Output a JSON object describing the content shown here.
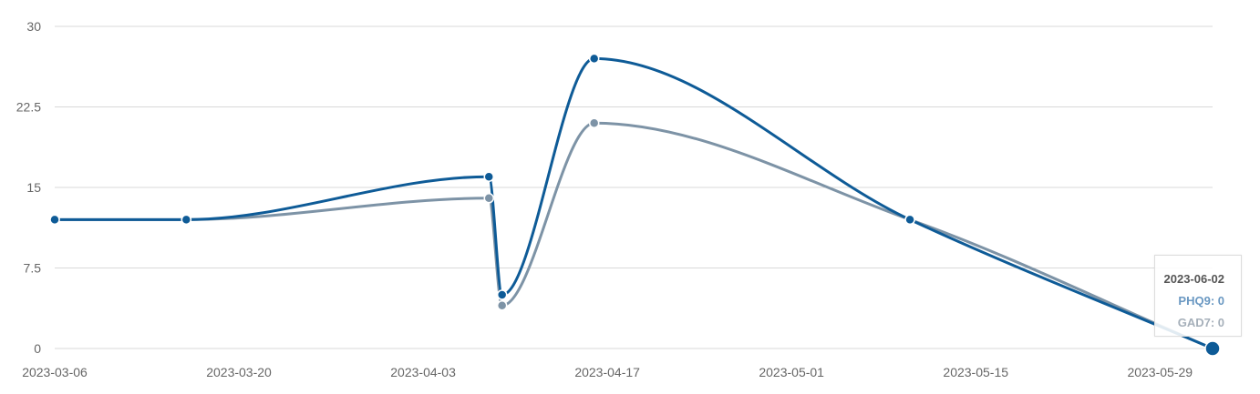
{
  "colors": {
    "phq9": "#0e5b97",
    "gad7": "#7d93a6",
    "grid": "#d9d9d9",
    "text": "#666666"
  },
  "tooltip": {
    "date": "2023-06-02",
    "phq9_text": "PHQ9: 0",
    "gad7_text": "GAD7: 0"
  },
  "chart_data": {
    "type": "line",
    "ylim": [
      0,
      30
    ],
    "yticks": [
      "0",
      "7.5",
      "15",
      "22.5",
      "30"
    ],
    "xlim": [
      "2023-03-06",
      "2023-06-02"
    ],
    "xticks": [
      "2023-03-06",
      "2023-03-20",
      "2023-04-03",
      "2023-04-17",
      "2023-05-01",
      "2023-05-15",
      "2023-05-29"
    ],
    "x": [
      "2023-03-06",
      "2023-03-16",
      "2023-04-08",
      "2023-04-09",
      "2023-04-16",
      "2023-05-10",
      "2023-06-02"
    ],
    "series": [
      {
        "name": "PHQ9",
        "values": [
          12,
          12,
          16,
          5,
          27,
          12,
          0
        ]
      },
      {
        "name": "GAD7",
        "values": [
          12,
          12,
          14,
          4,
          21,
          12,
          0
        ]
      }
    ],
    "grid": true,
    "smooth": true
  }
}
